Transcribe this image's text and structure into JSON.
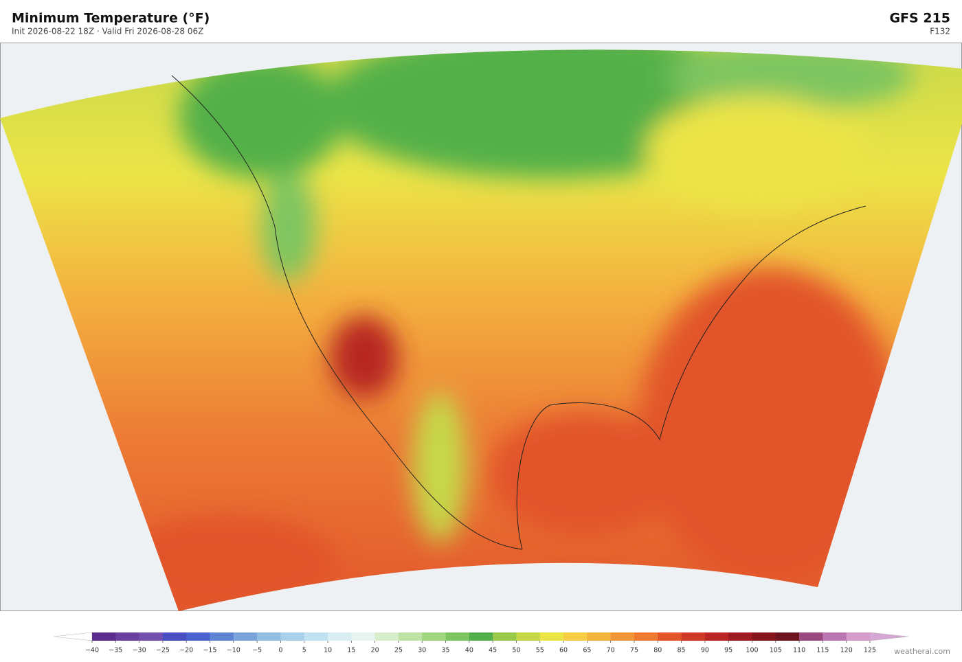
{
  "header": {
    "title": "Minimum Temperature  (°F)",
    "subtitle": "Init 2026-08-22 18Z  ·  Valid Fri 2026-08-28 06Z",
    "model": "GFS  215",
    "forecast_hour": "F132"
  },
  "colorbar": {
    "ticks": [
      {
        "value": -40,
        "label": "−40"
      },
      {
        "value": -35,
        "label": "−35"
      },
      {
        "value": -30,
        "label": "−30"
      },
      {
        "value": -25,
        "label": "−25"
      },
      {
        "value": -20,
        "label": "−20"
      },
      {
        "value": -15,
        "label": "−15"
      },
      {
        "value": -10,
        "label": "−10"
      },
      {
        "value": -5,
        "label": "−5"
      },
      0,
      5,
      10,
      15,
      20,
      25,
      30,
      35,
      40,
      45,
      50,
      55,
      60,
      65,
      70,
      75,
      80,
      85,
      90,
      95,
      100,
      105,
      110,
      115,
      120,
      125
    ],
    "colors": [
      "#5b2d8e",
      "#6b3fa0",
      "#7350b0",
      "#4a4fc0",
      "#4a64cc",
      "#5f84d4",
      "#7ca3dc",
      "#93bde2",
      "#a9d0ea",
      "#c1e2f0",
      "#d8eef3",
      "#e8f5ee",
      "#d7edcc",
      "#bfe3a4",
      "#9fd67f",
      "#7dc560",
      "#52b04a",
      "#98c94a",
      "#c6d84a",
      "#ece447",
      "#f5ce45",
      "#f4b23f",
      "#f0963a",
      "#ec7a35",
      "#e2552b",
      "#cf3a26",
      "#b82522",
      "#9c1a20",
      "#85161d",
      "#6d1420",
      "#9a4a7e",
      "#bb76b2",
      "#d59bcb"
    ],
    "under_color": "#ffffff",
    "over_color": "#d6a6d4"
  },
  "footer": {
    "credit": "weatherai.com"
  }
}
